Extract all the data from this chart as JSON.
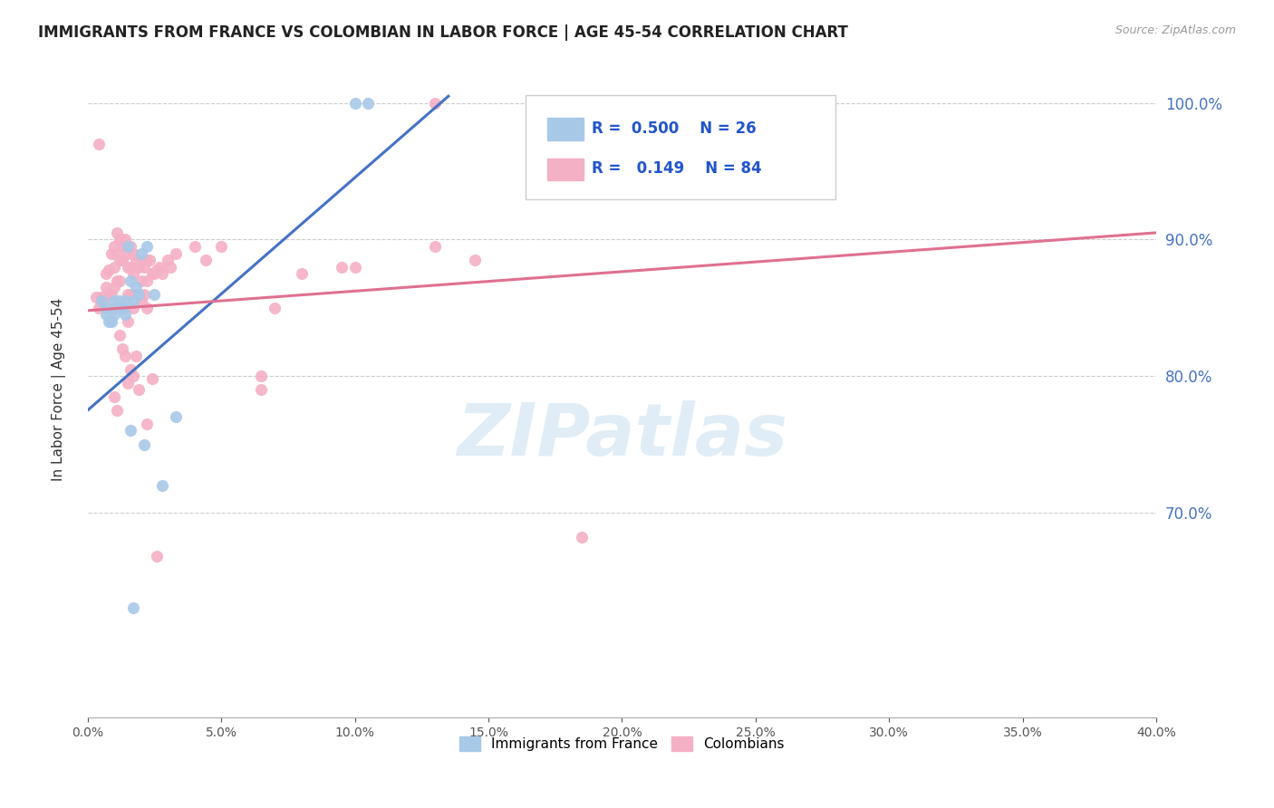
{
  "title": "IMMIGRANTS FROM FRANCE VS COLOMBIAN IN LABOR FORCE | AGE 45-54 CORRELATION CHART",
  "source": "Source: ZipAtlas.com",
  "ylabel": "In Labor Force | Age 45-54",
  "legend_france_r": "0.500",
  "legend_france_n": "26",
  "legend_colombia_r": "0.149",
  "legend_colombia_n": "84",
  "france_color": "#a8c8e8",
  "colombia_color": "#f4b0c4",
  "france_line_color": "#4472c4",
  "colombia_line_color": "#e07090",
  "watermark": "ZIPatlas",
  "france_points_x": [
    0.005,
    0.007,
    0.007,
    0.008,
    0.009,
    0.01,
    0.01,
    0.012,
    0.013,
    0.014,
    0.014,
    0.015,
    0.016,
    0.016,
    0.017,
    0.018,
    0.019,
    0.02,
    0.021,
    0.022,
    0.025,
    0.028,
    0.033,
    0.1,
    0.105,
    0.017
  ],
  "france_points_y": [
    0.855,
    0.85,
    0.845,
    0.84,
    0.84,
    0.855,
    0.845,
    0.855,
    0.85,
    0.855,
    0.845,
    0.895,
    0.87,
    0.76,
    0.855,
    0.865,
    0.86,
    0.89,
    0.75,
    0.895,
    0.86,
    0.72,
    0.77,
    1.0,
    1.0,
    0.63
  ],
  "colombia_points_x": [
    0.003,
    0.004,
    0.005,
    0.006,
    0.007,
    0.007,
    0.008,
    0.008,
    0.009,
    0.009,
    0.01,
    0.01,
    0.01,
    0.01,
    0.011,
    0.011,
    0.011,
    0.012,
    0.012,
    0.012,
    0.013,
    0.013,
    0.014,
    0.014,
    0.015,
    0.015,
    0.015,
    0.015,
    0.016,
    0.016,
    0.016,
    0.017,
    0.017,
    0.017,
    0.018,
    0.018,
    0.019,
    0.019,
    0.02,
    0.02,
    0.02,
    0.021,
    0.021,
    0.022,
    0.022,
    0.022,
    0.023,
    0.024,
    0.025,
    0.026,
    0.027,
    0.028,
    0.03,
    0.031,
    0.033,
    0.04,
    0.044,
    0.05,
    0.065,
    0.07,
    0.08,
    0.095,
    0.1,
    0.13,
    0.004,
    0.005,
    0.008,
    0.01,
    0.011,
    0.012,
    0.013,
    0.014,
    0.015,
    0.016,
    0.017,
    0.018,
    0.019,
    0.022,
    0.024,
    0.026,
    0.065,
    0.13,
    0.145,
    0.185
  ],
  "colombia_points_y": [
    0.858,
    0.85,
    0.858,
    0.855,
    0.875,
    0.865,
    0.878,
    0.86,
    0.89,
    0.86,
    0.895,
    0.88,
    0.865,
    0.85,
    0.905,
    0.89,
    0.87,
    0.9,
    0.885,
    0.87,
    0.895,
    0.885,
    0.9,
    0.85,
    0.89,
    0.88,
    0.86,
    0.84,
    0.895,
    0.88,
    0.86,
    0.89,
    0.875,
    0.85,
    0.885,
    0.86,
    0.88,
    0.86,
    0.885,
    0.87,
    0.855,
    0.88,
    0.86,
    0.885,
    0.87,
    0.85,
    0.885,
    0.875,
    0.875,
    0.878,
    0.88,
    0.875,
    0.885,
    0.88,
    0.89,
    0.895,
    0.885,
    0.895,
    0.8,
    0.85,
    0.875,
    0.88,
    0.88,
    1.0,
    0.97,
    0.855,
    0.86,
    0.785,
    0.775,
    0.83,
    0.82,
    0.815,
    0.795,
    0.805,
    0.8,
    0.815,
    0.79,
    0.765,
    0.798,
    0.668,
    0.79,
    0.895,
    0.885,
    0.682
  ],
  "xmin": 0.0,
  "xmax": 0.4,
  "ymin": 0.55,
  "ymax": 1.03,
  "y_ticks": [
    0.7,
    0.8,
    0.9,
    1.0
  ],
  "x_ticks": [
    0.0,
    0.05,
    0.1,
    0.15,
    0.2,
    0.25,
    0.3,
    0.35,
    0.4
  ],
  "france_line_x": [
    0.0,
    0.135
  ],
  "france_line_y": [
    0.775,
    1.005
  ],
  "colombia_line_x": [
    0.0,
    0.4
  ],
  "colombia_line_y": [
    0.848,
    0.905
  ]
}
